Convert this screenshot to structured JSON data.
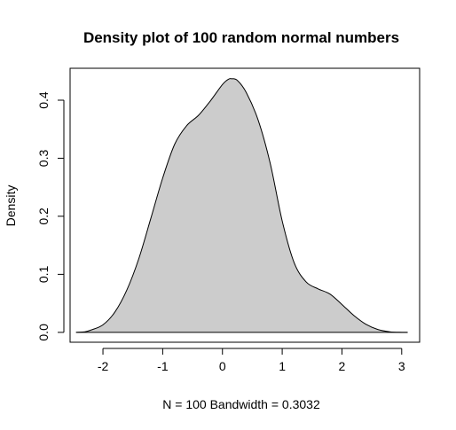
{
  "chart_data": {
    "type": "area",
    "title": "Density plot of 100 random normal numbers",
    "xlabel": "N = 100   Bandwidth = 0.3032",
    "ylabel": "Density",
    "xlim": [
      -2.55,
      3.3
    ],
    "ylim": [
      -0.017,
      0.455
    ],
    "x_ticks": [
      -2,
      -1,
      0,
      1,
      2,
      3
    ],
    "x_tick_labels": [
      "-2",
      "-1",
      "0",
      "1",
      "2",
      "3"
    ],
    "y_ticks": [
      0.0,
      0.1,
      0.2,
      0.3,
      0.4
    ],
    "y_tick_labels": [
      "0.0",
      "0.1",
      "0.2",
      "0.3",
      "0.4"
    ],
    "grid": false,
    "fill_color": "#cccccc",
    "line_color": "#000000",
    "series": [
      {
        "x": [
          -2.45,
          -2.3,
          -2.2,
          -2.0,
          -1.8,
          -1.6,
          -1.4,
          -1.2,
          -1.0,
          -0.8,
          -0.6,
          -0.4,
          -0.2,
          0.0,
          0.1,
          0.15,
          0.25,
          0.4,
          0.6,
          0.8,
          1.0,
          1.2,
          1.4,
          1.6,
          1.8,
          2.0,
          2.2,
          2.4,
          2.6,
          2.8,
          3.0,
          3.1
        ],
        "y": [
          0.0,
          0.001,
          0.004,
          0.013,
          0.035,
          0.073,
          0.127,
          0.196,
          0.266,
          0.324,
          0.356,
          0.374,
          0.399,
          0.427,
          0.436,
          0.437,
          0.434,
          0.413,
          0.365,
          0.291,
          0.192,
          0.12,
          0.087,
          0.075,
          0.066,
          0.048,
          0.029,
          0.014,
          0.005,
          0.001,
          0.0,
          0.0
        ]
      }
    ]
  }
}
